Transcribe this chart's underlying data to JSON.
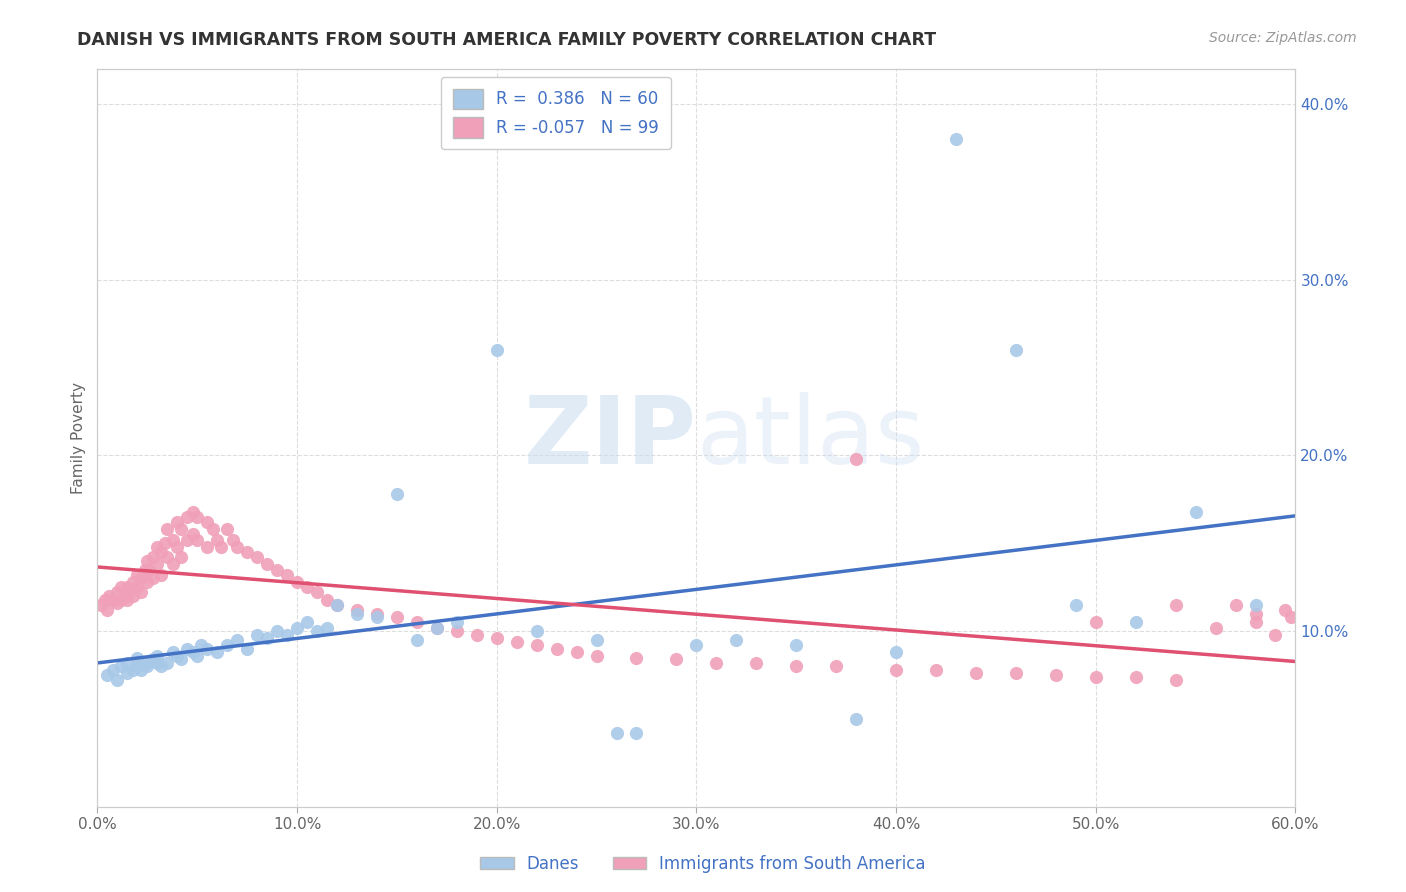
{
  "title": "DANISH VS IMMIGRANTS FROM SOUTH AMERICA FAMILY POVERTY CORRELATION CHART",
  "source": "Source: ZipAtlas.com",
  "ylabel": "Family Poverty",
  "watermark_text": "ZIPatlas",
  "xlim": [
    0.0,
    0.6
  ],
  "ylim": [
    0.0,
    0.42
  ],
  "xticks": [
    0.0,
    0.1,
    0.2,
    0.3,
    0.4,
    0.5,
    0.6
  ],
  "yticks_right": [
    0.0,
    0.1,
    0.2,
    0.3,
    0.4
  ],
  "ytick_labels_right": [
    "",
    "10.0%",
    "20.0%",
    "30.0%",
    "40.0%"
  ],
  "xtick_labels": [
    "0.0%",
    "10.0%",
    "20.0%",
    "30.0%",
    "40.0%",
    "50.0%",
    "60.0%"
  ],
  "color_danes": "#A8C8E8",
  "color_immigrants": "#F0A0B8",
  "color_line_danes": "#4472C4",
  "color_line_immigrants": "#E05070",
  "color_text_blue": "#4472C4",
  "background_color": "#FFFFFF",
  "grid_color": "#DDDDDD",
  "danes_x": [
    0.005,
    0.008,
    0.01,
    0.012,
    0.015,
    0.015,
    0.018,
    0.02,
    0.02,
    0.022,
    0.025,
    0.025,
    0.028,
    0.03,
    0.03,
    0.032,
    0.035,
    0.038,
    0.04,
    0.042,
    0.045,
    0.048,
    0.05,
    0.052,
    0.055,
    0.06,
    0.065,
    0.07,
    0.075,
    0.08,
    0.085,
    0.09,
    0.095,
    0.1,
    0.105,
    0.11,
    0.115,
    0.12,
    0.13,
    0.14,
    0.15,
    0.16,
    0.17,
    0.18,
    0.2,
    0.22,
    0.25,
    0.26,
    0.27,
    0.3,
    0.32,
    0.35,
    0.38,
    0.4,
    0.43,
    0.46,
    0.49,
    0.52,
    0.55,
    0.58
  ],
  "danes_y": [
    0.075,
    0.078,
    0.072,
    0.08,
    0.082,
    0.076,
    0.078,
    0.085,
    0.08,
    0.078,
    0.082,
    0.08,
    0.084,
    0.086,
    0.082,
    0.08,
    0.082,
    0.088,
    0.086,
    0.084,
    0.09,
    0.088,
    0.086,
    0.092,
    0.09,
    0.088,
    0.092,
    0.095,
    0.09,
    0.098,
    0.096,
    0.1,
    0.098,
    0.102,
    0.105,
    0.1,
    0.102,
    0.115,
    0.11,
    0.108,
    0.178,
    0.095,
    0.102,
    0.105,
    0.26,
    0.1,
    0.095,
    0.042,
    0.042,
    0.092,
    0.095,
    0.092,
    0.05,
    0.088,
    0.38,
    0.26,
    0.115,
    0.105,
    0.168,
    0.115
  ],
  "immigrants_x": [
    0.002,
    0.004,
    0.005,
    0.006,
    0.008,
    0.01,
    0.01,
    0.012,
    0.012,
    0.014,
    0.015,
    0.015,
    0.016,
    0.018,
    0.018,
    0.02,
    0.02,
    0.022,
    0.022,
    0.024,
    0.025,
    0.025,
    0.026,
    0.028,
    0.028,
    0.03,
    0.03,
    0.032,
    0.032,
    0.034,
    0.035,
    0.035,
    0.038,
    0.038,
    0.04,
    0.04,
    0.042,
    0.042,
    0.045,
    0.045,
    0.048,
    0.048,
    0.05,
    0.05,
    0.055,
    0.055,
    0.058,
    0.06,
    0.062,
    0.065,
    0.068,
    0.07,
    0.075,
    0.08,
    0.085,
    0.09,
    0.095,
    0.1,
    0.105,
    0.11,
    0.115,
    0.12,
    0.13,
    0.14,
    0.15,
    0.16,
    0.17,
    0.18,
    0.19,
    0.2,
    0.21,
    0.22,
    0.23,
    0.24,
    0.25,
    0.27,
    0.29,
    0.31,
    0.33,
    0.35,
    0.37,
    0.4,
    0.42,
    0.44,
    0.46,
    0.48,
    0.5,
    0.52,
    0.54,
    0.56,
    0.57,
    0.58,
    0.59,
    0.595,
    0.598,
    0.38,
    0.5,
    0.54,
    0.58
  ],
  "immigrants_y": [
    0.115,
    0.118,
    0.112,
    0.12,
    0.118,
    0.122,
    0.116,
    0.125,
    0.118,
    0.12,
    0.125,
    0.118,
    0.122,
    0.128,
    0.12,
    0.132,
    0.125,
    0.13,
    0.122,
    0.135,
    0.14,
    0.128,
    0.135,
    0.142,
    0.13,
    0.148,
    0.138,
    0.145,
    0.132,
    0.15,
    0.158,
    0.142,
    0.152,
    0.138,
    0.162,
    0.148,
    0.158,
    0.142,
    0.165,
    0.152,
    0.168,
    0.155,
    0.165,
    0.152,
    0.162,
    0.148,
    0.158,
    0.152,
    0.148,
    0.158,
    0.152,
    0.148,
    0.145,
    0.142,
    0.138,
    0.135,
    0.132,
    0.128,
    0.125,
    0.122,
    0.118,
    0.115,
    0.112,
    0.11,
    0.108,
    0.105,
    0.102,
    0.1,
    0.098,
    0.096,
    0.094,
    0.092,
    0.09,
    0.088,
    0.086,
    0.085,
    0.084,
    0.082,
    0.082,
    0.08,
    0.08,
    0.078,
    0.078,
    0.076,
    0.076,
    0.075,
    0.074,
    0.074,
    0.072,
    0.102,
    0.115,
    0.105,
    0.098,
    0.112,
    0.108,
    0.198,
    0.105,
    0.115,
    0.11
  ]
}
